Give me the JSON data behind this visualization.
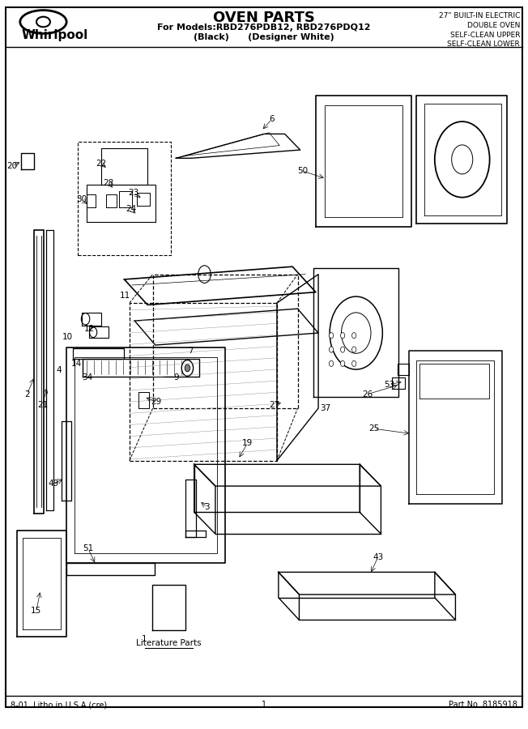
{
  "title": "OVEN PARTS",
  "subtitle_models": "For Models:RBD276PDB12, RBD276PDQ12",
  "subtitle_colors": "(Black)      (Designer White)",
  "right_text_lines": [
    "27\" BUILT-IN ELECTRIC",
    "DOUBLE OVEN",
    "SELF-CLEAN UPPER",
    "SELF-CLEAN LOWER"
  ],
  "footer_left": "8-01  Litho in U.S.A.(cre)",
  "footer_center": "1",
  "footer_right": "Part No. 8185918",
  "bg_color": "#ffffff",
  "border_color": "#000000",
  "text_color": "#000000",
  "literature_parts_text": "Literature Parts"
}
